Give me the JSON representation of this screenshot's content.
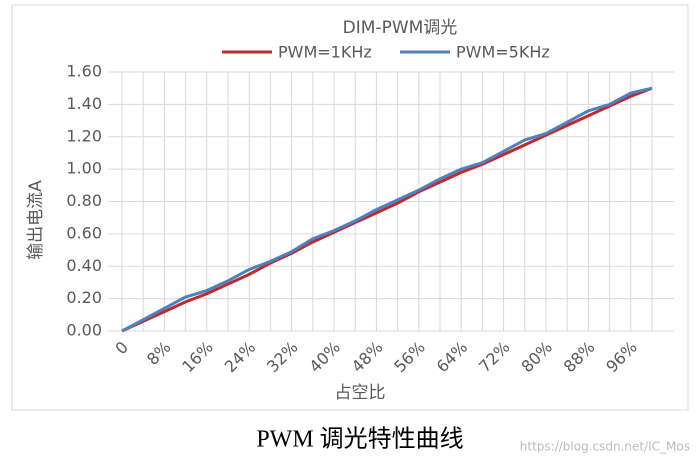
{
  "chart_data": {
    "type": "line",
    "title": "DIM-PWM调光",
    "x_label": "占空比",
    "y_label": "输出电流A",
    "categories": [
      "0",
      null,
      "8%",
      null,
      "16%",
      null,
      "24%",
      null,
      "32%",
      null,
      "40%",
      null,
      "48%",
      null,
      "56%",
      null,
      "64%",
      null,
      "72%",
      null,
      "80%",
      null,
      "88%",
      null,
      "96%",
      null
    ],
    "series": [
      {
        "name": "PWM=1KHz",
        "color": "#c0282d",
        "values": [
          0.0,
          0.06,
          0.12,
          0.18,
          0.23,
          0.29,
          0.35,
          0.42,
          0.48,
          0.55,
          0.61,
          0.67,
          0.73,
          0.79,
          0.86,
          0.92,
          0.98,
          1.03,
          1.09,
          1.15,
          1.21,
          1.27,
          1.33,
          1.39,
          1.45,
          1.5
        ]
      },
      {
        "name": "PWM=5KHz",
        "color": "#4f81bd",
        "values": [
          0.0,
          0.07,
          0.14,
          0.21,
          0.25,
          0.31,
          0.38,
          0.43,
          0.49,
          0.57,
          0.62,
          0.68,
          0.75,
          0.81,
          0.87,
          0.94,
          1.0,
          1.04,
          1.11,
          1.18,
          1.22,
          1.29,
          1.36,
          1.4,
          1.47,
          1.5
        ]
      }
    ],
    "ylim": [
      0,
      1.6
    ],
    "yticks": [
      {
        "value": 0,
        "label": "0.00"
      },
      {
        "value": 0.2,
        "label": "0.20"
      },
      {
        "value": 0.4,
        "label": "0.40"
      },
      {
        "value": 0.6,
        "label": "0.60"
      },
      {
        "value": 0.8,
        "label": "0.80"
      },
      {
        "value": 1.0,
        "label": "1.00"
      },
      {
        "value": 1.2,
        "label": "1.20"
      },
      {
        "value": 1.4,
        "label": "1.40"
      },
      {
        "value": 1.6,
        "label": "1.60"
      }
    ],
    "grid": true,
    "legend": "top"
  },
  "caption": "PWM 调光特性曲线",
  "watermark": "https://blog.csdn.net/IC_Mos"
}
